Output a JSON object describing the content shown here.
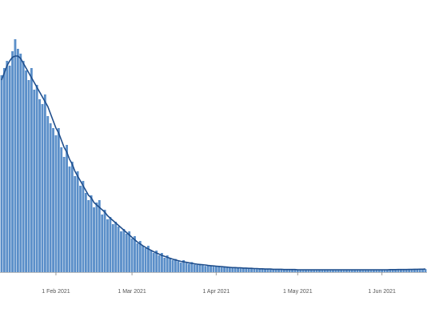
{
  "chart_data": {
    "type": "bar",
    "x": [
      "2021-01-12",
      "2021-01-13",
      "2021-01-14",
      "2021-01-15",
      "2021-01-16",
      "2021-01-17",
      "2021-01-18",
      "2021-01-19",
      "2021-01-20",
      "2021-01-21",
      "2021-01-22",
      "2021-01-23",
      "2021-01-24",
      "2021-01-25",
      "2021-01-26",
      "2021-01-27",
      "2021-01-28",
      "2021-01-29",
      "2021-01-30",
      "2021-01-31",
      "2021-02-01",
      "2021-02-02",
      "2021-02-03",
      "2021-02-04",
      "2021-02-05",
      "2021-02-06",
      "2021-02-07",
      "2021-02-08",
      "2021-02-09",
      "2021-02-10",
      "2021-02-11",
      "2021-02-12",
      "2021-02-13",
      "2021-02-14",
      "2021-02-15",
      "2021-02-16",
      "2021-02-17",
      "2021-02-18",
      "2021-02-19",
      "2021-02-20",
      "2021-02-21",
      "2021-02-22",
      "2021-02-23",
      "2021-02-24",
      "2021-02-25",
      "2021-02-26",
      "2021-02-27",
      "2021-02-28",
      "2021-03-01",
      "2021-03-02",
      "2021-03-03",
      "2021-03-04",
      "2021-03-05",
      "2021-03-06",
      "2021-03-07",
      "2021-03-08",
      "2021-03-09",
      "2021-03-10",
      "2021-03-11",
      "2021-03-12",
      "2021-03-13",
      "2021-03-14",
      "2021-03-15",
      "2021-03-16",
      "2021-03-17",
      "2021-03-18",
      "2021-03-19",
      "2021-03-20",
      "2021-03-21",
      "2021-03-22",
      "2021-03-23",
      "2021-03-24",
      "2021-03-25",
      "2021-03-26",
      "2021-03-27",
      "2021-03-28",
      "2021-03-29",
      "2021-03-30",
      "2021-03-31",
      "2021-04-01",
      "2021-04-02",
      "2021-04-03",
      "2021-04-04",
      "2021-04-05",
      "2021-04-06",
      "2021-04-07",
      "2021-04-08",
      "2021-04-09",
      "2021-04-10",
      "2021-04-11",
      "2021-04-12",
      "2021-04-13",
      "2021-04-14",
      "2021-04-15",
      "2021-04-16",
      "2021-04-17",
      "2021-04-18",
      "2021-04-19",
      "2021-04-20",
      "2021-04-21",
      "2021-04-22",
      "2021-04-23",
      "2021-04-24",
      "2021-04-25",
      "2021-04-26",
      "2021-04-27",
      "2021-04-28",
      "2021-04-29",
      "2021-04-30",
      "2021-05-01",
      "2021-05-02",
      "2021-05-03",
      "2021-05-04",
      "2021-05-05",
      "2021-05-06",
      "2021-05-07",
      "2021-05-08",
      "2021-05-09",
      "2021-05-10",
      "2021-05-11",
      "2021-05-12",
      "2021-05-13",
      "2021-05-14",
      "2021-05-15",
      "2021-05-16",
      "2021-05-17",
      "2021-05-18",
      "2021-05-19",
      "2021-05-20",
      "2021-05-21",
      "2021-05-22",
      "2021-05-23",
      "2021-05-24",
      "2021-05-25",
      "2021-05-26",
      "2021-05-27",
      "2021-05-28",
      "2021-05-29",
      "2021-05-30",
      "2021-05-31",
      "2021-06-01",
      "2021-06-02",
      "2021-06-03",
      "2021-06-04",
      "2021-06-05",
      "2021-06-06",
      "2021-06-07",
      "2021-06-08",
      "2021-06-09",
      "2021-06-10",
      "2021-06-11",
      "2021-06-12",
      "2021-06-13",
      "2021-06-14",
      "2021-06-15",
      "2021-06-16",
      "2021-06-17"
    ],
    "series": [
      {
        "type": "bar",
        "color": "#5b8fc9",
        "values": [
          82,
          85,
          88,
          86,
          92,
          97,
          93,
          91,
          88,
          84,
          80,
          85,
          76,
          78,
          72,
          70,
          74,
          65,
          62,
          60,
          57,
          60,
          52,
          48,
          53,
          44,
          46,
          40,
          42,
          36,
          38,
          33,
          30,
          32,
          27,
          29,
          30,
          24,
          26,
          22,
          23,
          20,
          21,
          19,
          17,
          18,
          16,
          17,
          14,
          15,
          12,
          13,
          11,
          10,
          11,
          9,
          8,
          9,
          7,
          8,
          6,
          7,
          6,
          5,
          5.5,
          4.5,
          4,
          5,
          3.8,
          3.5,
          4.2,
          3.2,
          3,
          3.4,
          2.8,
          2.6,
          3,
          2.5,
          2.3,
          2.6,
          2.2,
          2,
          2.4,
          1.9,
          2,
          1.8,
          1.7,
          2,
          1.6,
          1.7,
          1.5,
          1.6,
          1.4,
          1.5,
          1.3,
          1.4,
          1.2,
          1.3,
          1.2,
          1.1,
          1.2,
          1.1,
          1,
          1.2,
          1,
          1.1,
          1,
          1,
          1.1,
          0.9,
          1,
          1,
          1.1,
          0.9,
          1,
          1,
          0.9,
          1,
          1,
          1.1,
          0.9,
          1,
          0.9,
          1,
          1,
          0.9,
          1,
          1,
          0.9,
          1,
          0.9,
          1,
          1,
          0.9,
          1,
          1,
          1,
          0.9,
          1,
          1,
          1.1,
          1,
          1,
          1.1,
          1,
          1.1,
          1.1,
          1,
          1.2,
          1.1,
          1.2,
          1.2,
          1.3,
          1.2,
          1.3,
          1.4,
          1.3
        ]
      },
      {
        "type": "line",
        "color": "#1f4e8c",
        "values": [
          80,
          83,
          86,
          88,
          89.5,
          90,
          90,
          89,
          87,
          85,
          83,
          81,
          79,
          77,
          75,
          73,
          71,
          69,
          66,
          63,
          60,
          58,
          55,
          52,
          50,
          47,
          45,
          42,
          40,
          38,
          36,
          34,
          32,
          31,
          29,
          28,
          27,
          26,
          25,
          23.5,
          22.5,
          21.5,
          20.5,
          19.5,
          18.5,
          17.5,
          16.5,
          15.5,
          14.5,
          13.5,
          12.5,
          11.8,
          11,
          10.3,
          9.7,
          9.1,
          8.5,
          8,
          7.5,
          7,
          6.6,
          6.2,
          5.8,
          5.4,
          5.1,
          4.8,
          4.5,
          4.3,
          4.1,
          3.9,
          3.7,
          3.5,
          3.3,
          3.2,
          3.1,
          3,
          2.8,
          2.7,
          2.6,
          2.5,
          2.4,
          2.3,
          2.2,
          2.1,
          2,
          1.9,
          1.9,
          1.8,
          1.8,
          1.7,
          1.7,
          1.6,
          1.6,
          1.5,
          1.5,
          1.4,
          1.4,
          1.3,
          1.3,
          1.3,
          1.2,
          1.2,
          1.2,
          1.2,
          1.1,
          1.1,
          1.1,
          1.1,
          1.1,
          1,
          1,
          1,
          1,
          1,
          1,
          1,
          1,
          1,
          1,
          1,
          1,
          1,
          1,
          1,
          1,
          1,
          1,
          1,
          1,
          1,
          1,
          1,
          1,
          1,
          1,
          1,
          1,
          1,
          1,
          1,
          1,
          1,
          1,
          1.05,
          1.05,
          1.05,
          1.1,
          1.1,
          1.1,
          1.1,
          1.15,
          1.15,
          1.2,
          1.2,
          1.25,
          1.25,
          1.3
        ]
      }
    ],
    "xlim": [
      "2021-01-12",
      "2021-06-17"
    ],
    "ylim": [
      0,
      100
    ],
    "xticks": [
      {
        "value": "2021-02-01",
        "label": "1 Feb 2021"
      },
      {
        "value": "2021-03-01",
        "label": "1 Mar 2021"
      },
      {
        "value": "2021-04-01",
        "label": "1 Apr 2021"
      },
      {
        "value": "2021-05-01",
        "label": "1 May 2021"
      },
      {
        "value": "2021-06-01",
        "label": "1 Jun 2021"
      }
    ]
  }
}
